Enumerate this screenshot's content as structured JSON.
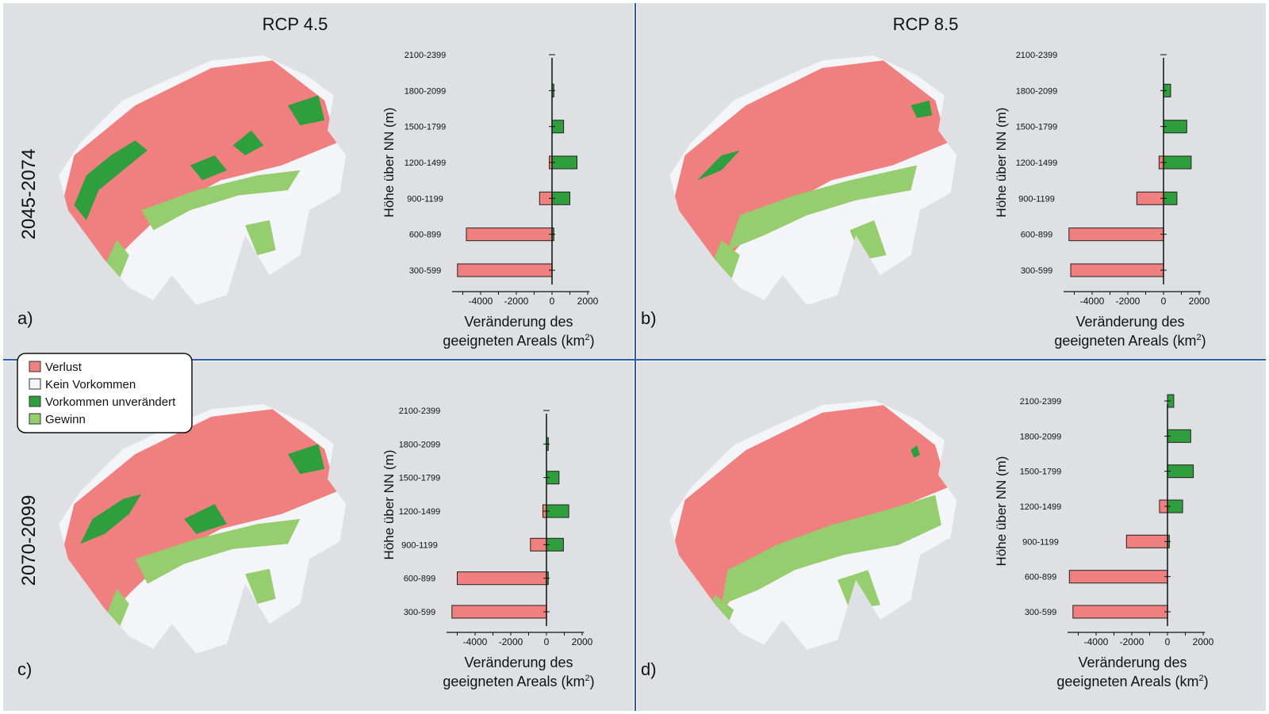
{
  "columns": [
    "RCP 4.5",
    "RCP 8.5"
  ],
  "rows": [
    "2045-2074",
    "2070-2099"
  ],
  "legend": [
    {
      "label": "Verlust",
      "color": "#f08080"
    },
    {
      "label": "Kein Vorkommen",
      "color": "#f4f5f8"
    },
    {
      "label": "Vorkommen unverändert",
      "color": "#2f9e3c"
    },
    {
      "label": "Gewinn",
      "color": "#96cd6e"
    }
  ],
  "colors": {
    "loss": "#f08080",
    "gain": "#2f9e3c",
    "gain_light": "#96cd6e",
    "none": "#f4f5f8",
    "panel_bg": "#dfe0e4",
    "divider": "#2a5ea8"
  },
  "chart_data": [
    {
      "panel": "a)",
      "type": "bar",
      "orientation": "horizontal",
      "categories": [
        "300-599",
        "600-899",
        "900-1199",
        "1200-1499",
        "1500-1799",
        "1800-2099",
        "2100-2399"
      ],
      "series": [
        {
          "values": [
            -5300,
            -4800,
            -700,
            -150,
            0,
            0,
            0
          ]
        },
        {
          "values": [
            0,
            100,
            1000,
            1400,
            650,
            100,
            0
          ]
        }
      ],
      "xticks": [
        -4000,
        -2000,
        0,
        2000
      ],
      "xlim": [
        -5600,
        2100
      ],
      "ylabel": "Höhe über NN (m)",
      "xlabel": [
        "Veränderung des",
        "geeigneten Areals (km",
        "2",
        ")"
      ]
    },
    {
      "panel": "b)",
      "type": "bar",
      "orientation": "horizontal",
      "categories": [
        "300-599",
        "600-899",
        "900-1199",
        "1200-1499",
        "1500-1799",
        "1800-2099",
        "2100-2399"
      ],
      "series": [
        {
          "values": [
            -5200,
            -5300,
            -1500,
            -250,
            0,
            0,
            0
          ]
        },
        {
          "values": [
            0,
            0,
            750,
            1550,
            1300,
            400,
            0
          ]
        }
      ],
      "xticks": [
        -4000,
        -2000,
        0,
        2000
      ],
      "xlim": [
        -5600,
        2100
      ],
      "ylabel": "Höhe über NN (m)",
      "xlabel": [
        "Veränderung des",
        "geeigneten Areals (km",
        "2",
        ")"
      ]
    },
    {
      "panel": "c)",
      "type": "bar",
      "orientation": "horizontal",
      "categories": [
        "300-599",
        "600-899",
        "900-1199",
        "1200-1499",
        "1500-1799",
        "1800-2099",
        "2100-2399"
      ],
      "series": [
        {
          "values": [
            -5300,
            -5000,
            -900,
            -200,
            0,
            0,
            0
          ]
        },
        {
          "values": [
            0,
            100,
            950,
            1250,
            700,
            100,
            0
          ]
        }
      ],
      "xticks": [
        -4000,
        -2000,
        0,
        2000
      ],
      "xlim": [
        -5600,
        2100
      ],
      "ylabel": "Höhe über NN (m)",
      "xlabel": [
        "Veränderung des",
        "geeigneten Areals (km",
        "2",
        ")"
      ]
    },
    {
      "panel": "d)",
      "type": "bar",
      "orientation": "horizontal",
      "categories": [
        "300-599",
        "600-899",
        "900-1199",
        "1200-1499",
        "1500-1799",
        "1800-2099",
        "2100-2399"
      ],
      "series": [
        {
          "values": [
            -5300,
            -5500,
            -2300,
            -450,
            0,
            0,
            0
          ]
        },
        {
          "values": [
            0,
            0,
            100,
            850,
            1450,
            1300,
            350
          ]
        }
      ],
      "xticks": [
        -4000,
        -2000,
        0,
        2000
      ],
      "xlim": [
        -5600,
        2100
      ],
      "ylabel": "Höhe über NN (m)",
      "xlabel": [
        "Veränderung des",
        "geeigneten Areals (km",
        "2",
        ")"
      ]
    }
  ]
}
